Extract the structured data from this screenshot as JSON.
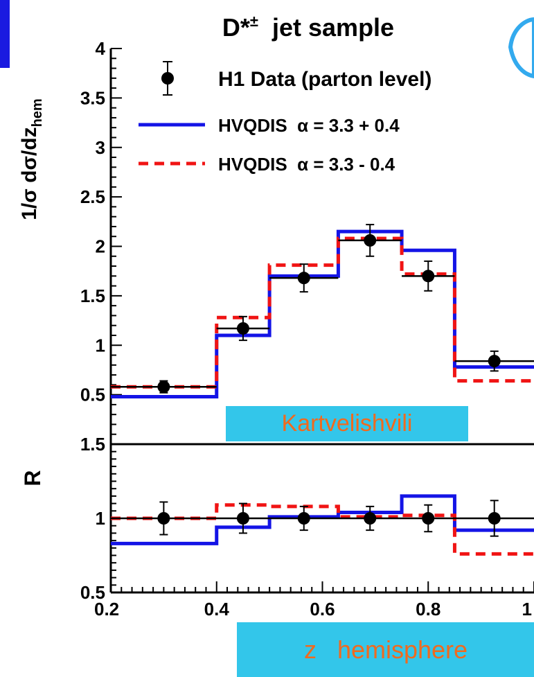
{
  "chart_data": [
    {
      "type": "step",
      "title": "D*± jet sample",
      "title_main": "D*",
      "title_sup": "±",
      "ylabel": "1/σ dσ/dz",
      "ylabel_sub": "hem",
      "ylim": [
        0,
        4
      ],
      "xlim": [
        0.2,
        1.0
      ],
      "y_ticks": [
        "0.5",
        "1",
        "1.5",
        "2",
        "2.5",
        "3",
        "3.5",
        "4"
      ],
      "y_tick_values": [
        0.5,
        1,
        1.5,
        2,
        2.5,
        3,
        3.5,
        4
      ],
      "legend_position": "top-right",
      "bin_edges": [
        0.2,
        0.4,
        0.5,
        0.63,
        0.75,
        0.85,
        1.0
      ],
      "data": {
        "name": "H1 Data (parton level)",
        "x": [
          0.3,
          0.45,
          0.565,
          0.69,
          0.8,
          0.925
        ],
        "y": [
          0.58,
          1.17,
          1.68,
          2.06,
          1.7,
          0.84
        ],
        "err": [
          0.06,
          0.12,
          0.14,
          0.16,
          0.15,
          0.1
        ],
        "color": "#000000"
      },
      "series": [
        {
          "name": "HVQDIS  α = 3.3 + 0.4",
          "values": [
            0.48,
            1.1,
            1.7,
            2.15,
            1.96,
            0.78
          ],
          "color": "#1414e6",
          "style": "solid"
        },
        {
          "name": "HVQDIS  α = 3.3 - 0.4",
          "values": [
            0.58,
            1.28,
            1.81,
            2.08,
            1.72,
            0.64
          ],
          "color": "#f01414",
          "style": "dashed"
        }
      ]
    },
    {
      "type": "step",
      "ylabel": "R",
      "xlabel": "z",
      "ylim": [
        0.5,
        1.5
      ],
      "xlim": [
        0.2,
        1.0
      ],
      "y_ticks": [
        "0.5",
        "1",
        "1.5"
      ],
      "y_tick_values": [
        0.5,
        1,
        1.5
      ],
      "x_ticks": [
        "0.2",
        "0.4",
        "0.6",
        "0.8",
        "1"
      ],
      "x_tick_values": [
        0.2,
        0.4,
        0.6,
        0.8,
        1.0
      ],
      "reference_line": 1.0,
      "data": {
        "x": [
          0.3,
          0.45,
          0.565,
          0.69,
          0.8,
          0.925
        ],
        "y": [
          1.0,
          1.0,
          1.0,
          1.0,
          1.0,
          1.0
        ],
        "err": [
          0.11,
          0.1,
          0.08,
          0.08,
          0.09,
          0.12
        ],
        "color": "#000000"
      },
      "series": [
        {
          "name": "HVQDIS  α = 3.3 + 0.4",
          "values": [
            0.83,
            0.94,
            1.01,
            1.04,
            1.15,
            0.92
          ],
          "color": "#1414e6",
          "style": "solid"
        },
        {
          "name": "HVQDIS  α = 3.3 - 0.4",
          "values": [
            1.0,
            1.09,
            1.08,
            1.01,
            1.02,
            0.76
          ],
          "color": "#f01414",
          "style": "dashed"
        }
      ]
    }
  ],
  "overlays": {
    "kartvelishvili": "Kartvelishvili",
    "z_hemisphere": "z   hemisphere"
  }
}
